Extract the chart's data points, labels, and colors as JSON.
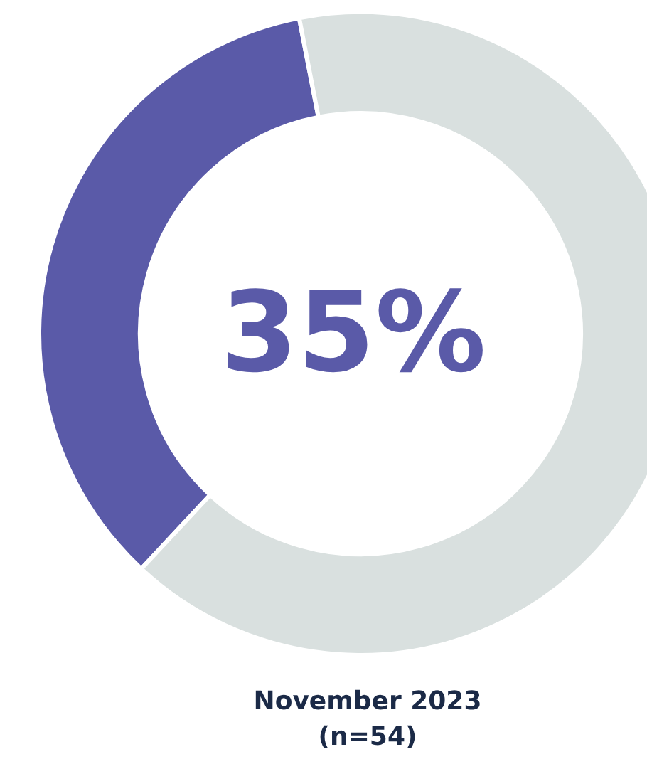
{
  "chart_data": {
    "type": "donut",
    "categories": [
      null,
      null
    ],
    "values": [
      35,
      65
    ],
    "colors": [
      "#5a5aa8",
      "#d9e0df"
    ],
    "annotations": [
      "35%",
      "November 2023\n(n=54)"
    ]
  }
}
